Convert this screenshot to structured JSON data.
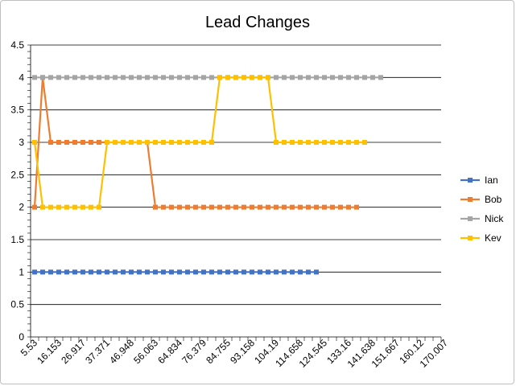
{
  "chart_data": {
    "type": "line",
    "title": "Lead Changes",
    "xlabel": "",
    "ylabel": "",
    "ylim": [
      0,
      4.5
    ],
    "y_ticks": [
      "0",
      "0.5",
      "1",
      "1.5",
      "2",
      "2.5",
      "3",
      "3.5",
      "4",
      "4.5"
    ],
    "x_tick_labels": [
      "5.53",
      "16.153",
      "26.917",
      "37.371",
      "46.948",
      "56.063",
      "64.834",
      "76.379",
      "84.755",
      "93.158",
      "104.19",
      "114.658",
      "124.545",
      "133.16",
      "141.638",
      "151.667",
      "160.12",
      "170.007"
    ],
    "grid": true,
    "legend_position": "right",
    "series": [
      {
        "name": "Ian",
        "color": "#4472C4",
        "values": [
          1,
          1,
          1,
          1,
          1,
          1,
          1,
          1,
          1,
          1,
          1,
          1,
          1,
          1,
          1,
          1,
          1,
          1,
          1,
          1,
          1,
          1,
          1,
          1,
          1,
          1,
          1,
          1,
          1,
          1,
          1,
          1,
          1,
          1,
          1,
          1
        ]
      },
      {
        "name": "Bob",
        "color": "#ED7D31",
        "values": [
          2,
          4,
          3,
          3,
          3,
          3,
          3,
          3,
          3,
          3,
          3,
          3,
          3,
          3,
          3,
          2,
          2,
          2,
          2,
          2,
          2,
          2,
          2,
          2,
          2,
          2,
          2,
          2,
          2,
          2,
          2,
          2,
          2,
          2,
          2,
          2,
          2,
          2,
          2,
          2,
          2
        ]
      },
      {
        "name": "Nick",
        "color": "#A5A5A5",
        "values": [
          4,
          4,
          4,
          4,
          4,
          4,
          4,
          4,
          4,
          4,
          4,
          4,
          4,
          4,
          4,
          4,
          4,
          4,
          4,
          4,
          4,
          4,
          4,
          4,
          4,
          4,
          4,
          4,
          4,
          4,
          4,
          4,
          4,
          4,
          4,
          4,
          4,
          4,
          4,
          4,
          4,
          4,
          4,
          4
        ]
      },
      {
        "name": "Kev",
        "color": "#FFC000",
        "values": [
          3,
          2,
          2,
          2,
          2,
          2,
          2,
          2,
          2,
          3,
          3,
          3,
          3,
          3,
          3,
          3,
          3,
          3,
          3,
          3,
          3,
          3,
          3,
          4,
          4,
          4,
          4,
          4,
          4,
          4,
          3,
          3,
          3,
          3,
          3,
          3,
          3,
          3,
          3,
          3,
          3,
          3
        ]
      }
    ]
  }
}
